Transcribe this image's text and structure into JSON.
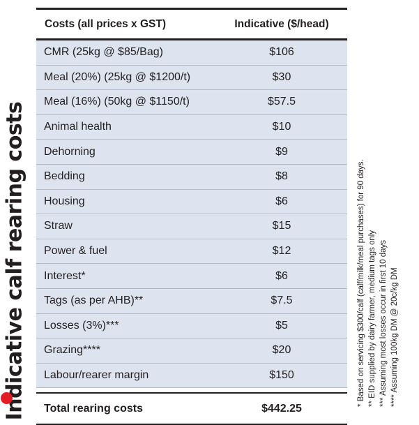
{
  "side_title": "Indicative calf rearing costs",
  "table": {
    "headers": [
      "Costs (all prices x GST)",
      "Indicative ($/head)"
    ],
    "rows": [
      [
        "CMR (25kg @ $85/Bag)",
        "$106"
      ],
      [
        "Meal (20%) (25kg @ $1200/t)",
        "$30"
      ],
      [
        "Meal (16%) (50kg @ $1150/t)",
        "$57.5"
      ],
      [
        "Animal health",
        "$10"
      ],
      [
        "Dehorning",
        "$9"
      ],
      [
        "Bedding",
        "$8"
      ],
      [
        "Housing",
        "$6"
      ],
      [
        "Straw",
        "$15"
      ],
      [
        "Power & fuel",
        "$12"
      ],
      [
        "Interest*",
        "$6"
      ],
      [
        "Tags (as per AHB)**",
        "$7.5"
      ],
      [
        "Losses (3%)***",
        "$5"
      ],
      [
        "Grazing****",
        "$20"
      ],
      [
        "Labour/rearer margin",
        "$150"
      ]
    ],
    "total": [
      "Total rearing costs",
      "$442.25"
    ]
  },
  "footnotes": [
    "* Based on servicing $300/calf (calf/milk/meal purchases) for 90 days.",
    "** EID supplied by dairy farmer, medium tags only",
    "*** Assuming most losses occur in first 10 days",
    "**** Assuming 100kg DM @ 20c/kg DM"
  ],
  "colors": {
    "accent_dot": "#e31b23",
    "row_fill": "#dde3ef",
    "text": "#231f20"
  }
}
